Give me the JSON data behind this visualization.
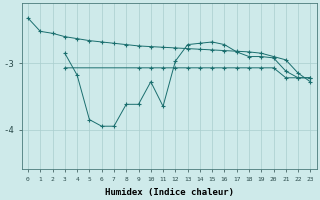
{
  "xlabel": "Humidex (Indice chaleur)",
  "background_color": "#ceeaea",
  "grid_color": "#aacece",
  "line_color": "#1a6e6e",
  "xlim": [
    -0.5,
    23.5
  ],
  "ylim": [
    -4.6,
    -2.1
  ],
  "yticks": [
    -4,
    -3
  ],
  "xticks": [
    0,
    1,
    2,
    3,
    4,
    5,
    6,
    7,
    8,
    9,
    10,
    11,
    12,
    13,
    14,
    15,
    16,
    17,
    18,
    19,
    20,
    21,
    22,
    23
  ],
  "series1_x": [
    0,
    1,
    2,
    3,
    4,
    5,
    6,
    7,
    8,
    9,
    10,
    11,
    12,
    13,
    14,
    15,
    16,
    17,
    18,
    19,
    20,
    21,
    22,
    23
  ],
  "series1_y": [
    -2.32,
    -2.52,
    -2.55,
    -2.6,
    -2.63,
    -2.66,
    -2.68,
    -2.7,
    -2.72,
    -2.74,
    -2.75,
    -2.76,
    -2.77,
    -2.78,
    -2.79,
    -2.8,
    -2.81,
    -2.82,
    -2.83,
    -2.85,
    -2.9,
    -2.95,
    -3.15,
    -3.28
  ],
  "series2_x": [
    3,
    4,
    5,
    6,
    7,
    8,
    9,
    10,
    11,
    12,
    13,
    14,
    15,
    16,
    17,
    18,
    19,
    20,
    21,
    22,
    23
  ],
  "series2_y": [
    -2.85,
    -3.18,
    -3.85,
    -3.95,
    -3.95,
    -3.62,
    -3.62,
    -3.28,
    -3.65,
    -2.97,
    -2.72,
    -2.7,
    -2.68,
    -2.72,
    -2.83,
    -2.9,
    -2.9,
    -2.92,
    -3.12,
    -3.22,
    -3.22
  ],
  "series3_x": [
    3,
    9,
    10,
    11,
    12,
    13,
    14,
    15,
    16,
    17,
    18,
    19,
    20,
    21,
    22,
    23
  ],
  "series3_y": [
    -3.07,
    -3.07,
    -3.07,
    -3.07,
    -3.07,
    -3.07,
    -3.07,
    -3.07,
    -3.07,
    -3.07,
    -3.07,
    -3.07,
    -3.07,
    -3.22,
    -3.22,
    -3.22
  ]
}
